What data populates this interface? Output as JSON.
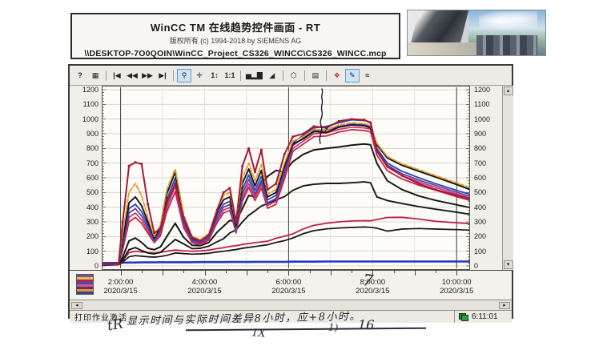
{
  "window": {
    "title": "WinCC TM 在线趋势控件画面 - RT",
    "copyright": "版权所有 (c) 1994-2018 by SIEMENS AG",
    "project_path": "\\\\DESKTOP-7O0QOIN\\WinCC_Project_CS326_WINCC\\CS326_WINCC.mcp"
  },
  "toolbar": {
    "buttons": [
      {
        "name": "help",
        "glyph": "?"
      },
      {
        "name": "legend-table",
        "glyph": "▦"
      },
      {
        "type": "sep"
      },
      {
        "name": "first-record",
        "glyph": "|◀"
      },
      {
        "name": "previous-record",
        "glyph": "◀◀"
      },
      {
        "name": "next-record",
        "glyph": "▶▶"
      },
      {
        "name": "last-record",
        "glyph": "▶|"
      },
      {
        "type": "sep"
      },
      {
        "name": "zoom",
        "glyph": "⚲",
        "selected": true
      },
      {
        "name": "pan",
        "glyph": "✛"
      },
      {
        "name": "zoom-value-axis",
        "glyph": "1↕"
      },
      {
        "name": "one-to-one",
        "glyph": "1:1"
      },
      {
        "type": "sep"
      },
      {
        "name": "bar-view",
        "glyph": "▅▂▇"
      },
      {
        "name": "area-view",
        "glyph": "◢"
      },
      {
        "type": "sep"
      },
      {
        "name": "stop-update",
        "glyph": "⬡"
      },
      {
        "type": "sep"
      },
      {
        "name": "print",
        "glyph": "▤"
      },
      {
        "type": "sep"
      },
      {
        "name": "select-trends",
        "glyph": "❖",
        "color": "#b03a3a"
      },
      {
        "name": "edit-chart",
        "glyph": "✎",
        "selected": true
      },
      {
        "name": "trend-curves",
        "glyph": "≈"
      }
    ]
  },
  "scrollbars": {
    "left": "◂",
    "right": "▸",
    "up": "▴",
    "down": "▾"
  },
  "status_bar": {
    "left_text": "打印作业激活",
    "clock": "6:11:01"
  },
  "annotations": {
    "note": "显示时间与实际时间差异8小时，应+8小时。",
    "mark_left": "tR",
    "mark_mid": "1X",
    "mark_paren": "1)",
    "mark_right": "16",
    "axis_mark": "7"
  },
  "chart_data": {
    "type": "line",
    "title": "",
    "xlabel": "time (2020/3/15)",
    "ylabel": "",
    "ylim": [
      0,
      1200
    ],
    "grid": true,
    "legend_position": "none",
    "time_domain": [
      1.55,
      10.32
    ],
    "dark_vgrid_hours": [
      2,
      6,
      10
    ],
    "y_axis": {
      "min": 0,
      "max": 1200,
      "step": 100,
      "labels": [
        "1200",
        "1100",
        "1000",
        "900",
        "800",
        "700",
        "600",
        "500",
        "400",
        "300",
        "200",
        "100",
        "0"
      ]
    },
    "x_ticks": [
      {
        "t": 2,
        "time": "2:00:00",
        "date": "2020/3/15"
      },
      {
        "t": 4,
        "time": "4:00:00",
        "date": "2020/3/15"
      },
      {
        "t": 6,
        "time": "6:00:00",
        "date": "2020/3/15"
      },
      {
        "t": 8,
        "time": "8:00:00",
        "date": "2020/3/15"
      },
      {
        "t": 10,
        "time": "10:00:00",
        "date": "2020/3/15"
      }
    ],
    "x": [
      1.55,
      1.95,
      2.05,
      2.2,
      2.35,
      2.5,
      2.65,
      2.8,
      2.95,
      3.1,
      3.3,
      3.5,
      3.7,
      3.9,
      4.1,
      4.3,
      4.45,
      4.6,
      4.75,
      4.9,
      5.05,
      5.2,
      5.35,
      5.5,
      5.7,
      5.9,
      6.1,
      6.35,
      6.6,
      6.9,
      7.2,
      7.5,
      7.8,
      7.95,
      8.1,
      8.35,
      8.7,
      9.1,
      9.5,
      10.0,
      10.3
    ],
    "series": [
      {
        "name": "pen-blue-flat",
        "color": "#2238c8",
        "width": 2.6,
        "values": [
          20,
          21,
          22,
          23,
          23,
          24,
          24,
          24,
          25,
          25,
          25,
          25,
          25,
          26,
          26,
          26,
          26,
          27,
          27,
          27,
          27,
          28,
          28,
          28,
          28,
          28,
          29,
          29,
          29,
          30,
          30,
          30,
          30,
          30,
          30,
          30,
          30,
          30,
          30,
          30,
          30
        ]
      },
      {
        "name": "pen-black-low",
        "color": "#121212",
        "width": 1.7,
        "values": [
          5,
          7,
          25,
          62,
          70,
          66,
          62,
          60,
          64,
          72,
          88,
          84,
          80,
          82,
          86,
          95,
          100,
          106,
          112,
          120,
          126,
          132,
          138,
          144,
          160,
          172,
          190,
          220,
          240,
          252,
          258,
          262,
          265,
          263,
          257,
          237,
          251,
          255,
          251,
          247,
          244
        ]
      },
      {
        "name": "pen-red-low",
        "color": "#c41f4a",
        "width": 1.8,
        "values": [
          6,
          8,
          35,
          90,
          100,
          95,
          90,
          88,
          92,
          100,
          108,
          103,
          100,
          102,
          108,
          118,
          124,
          132,
          138,
          146,
          152,
          158,
          163,
          168,
          188,
          202,
          218,
          252,
          276,
          291,
          300,
          306,
          308,
          307,
          316,
          330,
          331,
          319,
          304,
          294,
          288
        ]
      },
      {
        "name": "pen-black-mid",
        "color": "#181818",
        "width": 1.9,
        "values": [
          8,
          10,
          40,
          110,
          125,
          105,
          88,
          82,
          92,
          130,
          180,
          150,
          118,
          120,
          135,
          165,
          185,
          225,
          245,
          300,
          345,
          375,
          408,
          425,
          450,
          472,
          515,
          545,
          556,
          562,
          562,
          566,
          572,
          566,
          470,
          445,
          425,
          404,
          386,
          366,
          352
        ]
      },
      {
        "name": "pen-black-high",
        "color": "#161616",
        "width": 2.0,
        "values": [
          10,
          12,
          60,
          170,
          190,
          160,
          120,
          110,
          130,
          200,
          290,
          195,
          140,
          138,
          160,
          230,
          270,
          310,
          300,
          390,
          480,
          470,
          560,
          610,
          650,
          640,
          710,
          760,
          790,
          800,
          810,
          822,
          830,
          825,
          700,
          580,
          520,
          476,
          446,
          416,
          398
        ]
      },
      {
        "name": "pen-red-bundle",
        "color": "#c81c40",
        "width": 1.7,
        "values": [
          9,
          11,
          108,
          300,
          330,
          290,
          222,
          158,
          205,
          368,
          505,
          260,
          158,
          143,
          176,
          295,
          360,
          378,
          224,
          440,
          535,
          445,
          530,
          392,
          420,
          590,
          780,
          830,
          880,
          885,
          912,
          928,
          922,
          912,
          755,
          648,
          592,
          550,
          515,
          472,
          448
        ]
      },
      {
        "name": "pen-magenta",
        "color": "#c23574",
        "width": 1.7,
        "values": [
          9,
          11,
          120,
          330,
          360,
          315,
          240,
          165,
          220,
          395,
          540,
          278,
          165,
          150,
          184,
          312,
          380,
          398,
          236,
          465,
          560,
          468,
          555,
          412,
          440,
          612,
          800,
          850,
          900,
          905,
          930,
          945,
          940,
          930,
          780,
          672,
          615,
          572,
          535,
          490,
          463
        ]
      },
      {
        "name": "pen-purple",
        "color": "#5e3da0",
        "width": 1.7,
        "values": [
          10,
          12,
          135,
          360,
          390,
          340,
          260,
          172,
          235,
          420,
          570,
          295,
          172,
          158,
          192,
          330,
          400,
          418,
          248,
          490,
          590,
          490,
          580,
          430,
          460,
          635,
          820,
          870,
          920,
          925,
          950,
          965,
          960,
          950,
          790,
          685,
          628,
          585,
          548,
          502,
          474
        ]
      },
      {
        "name": "pen-blue",
        "color": "#2c46b4",
        "width": 1.8,
        "values": [
          10,
          12,
          150,
          390,
          420,
          370,
          280,
          180,
          250,
          450,
          600,
          310,
          180,
          165,
          200,
          350,
          420,
          440,
          260,
          520,
          620,
          515,
          610,
          450,
          480,
          660,
          840,
          890,
          940,
          950,
          975,
          995,
          990,
          980,
          800,
          700,
          645,
          600,
          560,
          515,
          488
        ]
      },
      {
        "name": "pen-black-top",
        "color": "#151515",
        "width": 1.9,
        "values": [
          12,
          14,
          180,
          430,
          470,
          410,
          300,
          190,
          265,
          490,
          640,
          330,
          190,
          172,
          210,
          370,
          450,
          470,
          275,
          560,
          660,
          545,
          650,
          470,
          500,
          680,
          830,
          865,
          915,
          910,
          945,
          960,
          955,
          940,
          825,
          735,
          685,
          645,
          605,
          555,
          522
        ]
      },
      {
        "name": "pen-orange",
        "color": "#e09a28",
        "width": 1.8,
        "dash": "5 2.5",
        "values": [
          12,
          14,
          220,
          500,
          560,
          480,
          330,
          200,
          280,
          520,
          660,
          350,
          200,
          180,
          220,
          390,
          480,
          500,
          290,
          600,
          700,
          580,
          690,
          490,
          520,
          700,
          850,
          880,
          930,
          925,
          960,
          975,
          970,
          955,
          835,
          745,
          695,
          655,
          615,
          565,
          535
        ]
      },
      {
        "name": "pen-crimson-markers",
        "color": "#a81838",
        "width": 2.0,
        "markers": true,
        "values": [
          12,
          15,
          300,
          680,
          705,
          695,
          420,
          225,
          255,
          430,
          560,
          330,
          195,
          170,
          210,
          380,
          500,
          530,
          300,
          680,
          800,
          640,
          790,
          520,
          560,
          760,
          880,
          900,
          950,
          940,
          985,
          1000,
          995,
          975,
          780,
          680,
          615,
          560,
          520,
          480,
          458
        ]
      }
    ]
  }
}
